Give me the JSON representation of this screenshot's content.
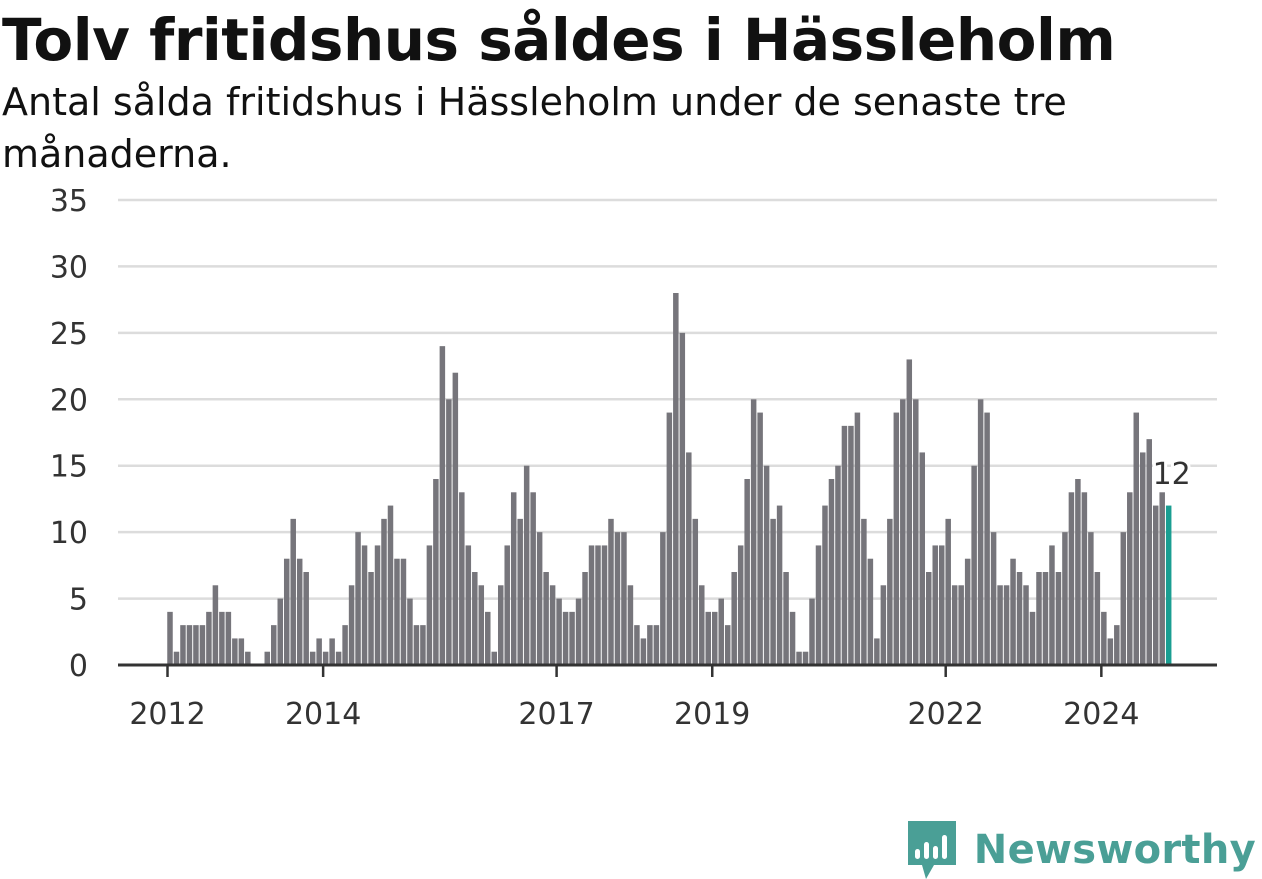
{
  "header": {
    "title": "Tolv fritidshus såldes i Hässleholm",
    "subtitle": "Antal sålda fritidshus i Hässleholm under de senaste tre månaderna."
  },
  "brand": {
    "name": "Newsworthy",
    "icon": "newsworthy-logo-icon",
    "color": "#4a9f96"
  },
  "colors": {
    "bar": "#76757b",
    "highlight": "#1a9e92",
    "grid": "#dcdcdc",
    "axis": "#333333"
  },
  "chart_data": {
    "type": "bar",
    "title": "Tolv fritidshus såldes i Hässleholm",
    "subtitle": "Antal sålda fritidshus i Hässleholm under de senaste tre månaderna.",
    "x_unit": "month",
    "x_start": "2012-01",
    "ylim": [
      0,
      35
    ],
    "y_ticks": [
      0,
      5,
      10,
      15,
      20,
      25,
      30,
      35
    ],
    "x_ticks": [
      "2012",
      "2014",
      "2017",
      "2019",
      "2022",
      "2024"
    ],
    "grid": true,
    "last_label": "12",
    "values": [
      4,
      1,
      3,
      3,
      3,
      3,
      4,
      6,
      4,
      4,
      2,
      2,
      1,
      0,
      0,
      1,
      3,
      5,
      8,
      11,
      8,
      7,
      1,
      2,
      1,
      2,
      1,
      3,
      6,
      10,
      9,
      7,
      9,
      11,
      12,
      8,
      8,
      5,
      3,
      3,
      9,
      14,
      24,
      20,
      22,
      13,
      9,
      7,
      6,
      4,
      1,
      6,
      9,
      13,
      11,
      15,
      13,
      10,
      7,
      6,
      5,
      4,
      4,
      5,
      7,
      9,
      9,
      9,
      11,
      10,
      10,
      6,
      3,
      2,
      3,
      3,
      10,
      19,
      28,
      25,
      16,
      11,
      6,
      4,
      4,
      5,
      3,
      7,
      9,
      14,
      20,
      19,
      15,
      11,
      12,
      7,
      4,
      1,
      1,
      5,
      9,
      12,
      14,
      15,
      18,
      18,
      19,
      11,
      8,
      2,
      6,
      11,
      19,
      20,
      23,
      20,
      16,
      7,
      9,
      9,
      11,
      6,
      6,
      8,
      15,
      20,
      19,
      10,
      6,
      6,
      8,
      7,
      6,
      4,
      7,
      7,
      9,
      7,
      10,
      13,
      14,
      13,
      10,
      7,
      4,
      2,
      3,
      10,
      13,
      19,
      16,
      17,
      12,
      13,
      12
    ]
  }
}
